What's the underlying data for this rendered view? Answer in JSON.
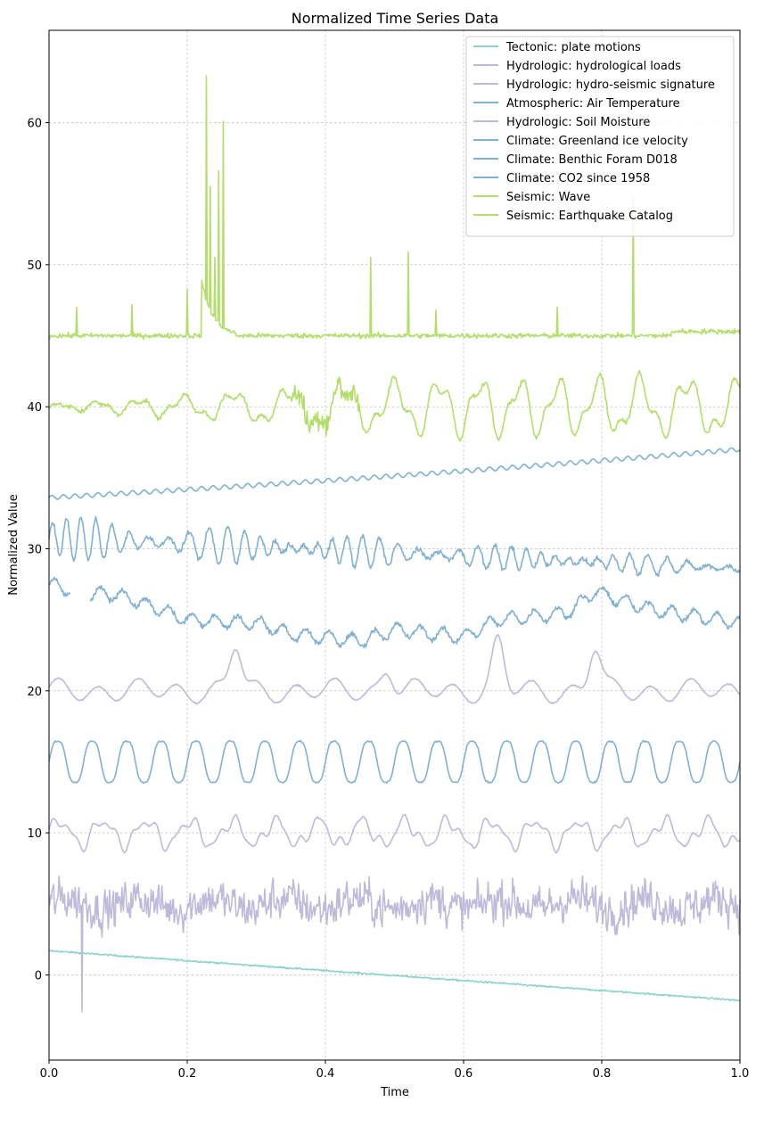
{
  "chart_data": {
    "type": "line",
    "title": "Normalized Time Series Data",
    "xlabel": "Time",
    "ylabel": "Normalized Value",
    "xlim": [
      0.0,
      1.0
    ],
    "ylim": [
      -6,
      66.5
    ],
    "x_ticks": [
      "0.0",
      "0.2",
      "0.4",
      "0.6",
      "0.8",
      "1.0"
    ],
    "y_ticks": [
      "0",
      "10",
      "20",
      "30",
      "40",
      "50",
      "60"
    ],
    "grid": true,
    "legend_position": "top-right",
    "series": [
      {
        "name": "Tectonic: plate motions",
        "color": "#8dd3c7",
        "baseline": 0,
        "shape": "trend",
        "start": 1.7,
        "end": -1.8,
        "noise": 0.12
      },
      {
        "name": "Hydrologic: hydrological loads",
        "color": "#bebada",
        "baseline": 5,
        "shape": "noise",
        "amplitude": 1.4,
        "spike": {
          "x": 0.048,
          "value": -2.6
        }
      },
      {
        "name": "Hydrologic: hydro-seismic signature",
        "color": "#bebada",
        "baseline": 10,
        "shape": "wave",
        "amplitude": 1.4,
        "cycles": 16
      },
      {
        "name": "Atmospheric: Air Temperature",
        "color": "#80b1d3",
        "baseline": 15,
        "shape": "sine",
        "amplitude": 1.6,
        "cycles": 20
      },
      {
        "name": "Hydrologic: Soil Moisture",
        "color": "#bebada",
        "baseline": 20,
        "shape": "peaks",
        "amplitude": 1.2,
        "peaks": [
          [
            0.27,
            23.2
          ],
          [
            0.49,
            21.6
          ],
          [
            0.65,
            23.4
          ],
          [
            0.79,
            23.1
          ]
        ]
      },
      {
        "name": "Climate: Greenland ice velocity",
        "color": "#80b1d3",
        "baseline": 25,
        "shape": "segments",
        "points": [
          [
            0.0,
            27.5
          ],
          [
            0.05,
            26.8
          ],
          [
            0.1,
            26.8
          ],
          [
            0.2,
            25.0
          ],
          [
            0.3,
            24.8
          ],
          [
            0.35,
            24.0
          ],
          [
            0.45,
            23.5
          ],
          [
            0.5,
            24.3
          ],
          [
            0.6,
            23.8
          ],
          [
            0.65,
            25.0
          ],
          [
            0.75,
            25.5
          ],
          [
            0.79,
            27.0
          ],
          [
            0.85,
            26.0
          ],
          [
            0.9,
            25.5
          ],
          [
            1.0,
            24.8
          ]
        ],
        "gap": [
          0.03,
          0.06
        ]
      },
      {
        "name": "Climate: Benthic Foram D018",
        "color": "#80b1d3",
        "baseline": 30,
        "shape": "decay_osc",
        "start": 30.8,
        "end": 28.6,
        "amplitude": 1.6
      },
      {
        "name": "Climate: CO2 since 1958",
        "color": "#80b1d3",
        "baseline": 35,
        "shape": "trend_osc",
        "start": 33.6,
        "end": 37.0,
        "amplitude": 0.15,
        "cycles": 60
      },
      {
        "name": "Seismic: Wave",
        "color": "#b3de69",
        "baseline": 40,
        "shape": "growing_osc",
        "amplitude_start": 0.2,
        "amplitude_end": 2.4
      },
      {
        "name": "Seismic: Earthquake Catalog",
        "color": "#b3de69",
        "baseline": 45,
        "shape": "spikes",
        "spikes": [
          [
            0.228,
            63.3
          ],
          [
            0.233,
            55.5
          ],
          [
            0.245,
            56.6
          ],
          [
            0.252,
            60.1
          ],
          [
            0.24,
            50.5
          ],
          [
            0.2,
            48.3
          ],
          [
            0.465,
            50.5
          ],
          [
            0.52,
            50.9
          ],
          [
            0.845,
            54.7
          ],
          [
            0.04,
            47.0
          ],
          [
            0.12,
            47.2
          ],
          [
            0.56,
            46.8
          ],
          [
            0.735,
            47.0
          ]
        ]
      }
    ]
  }
}
